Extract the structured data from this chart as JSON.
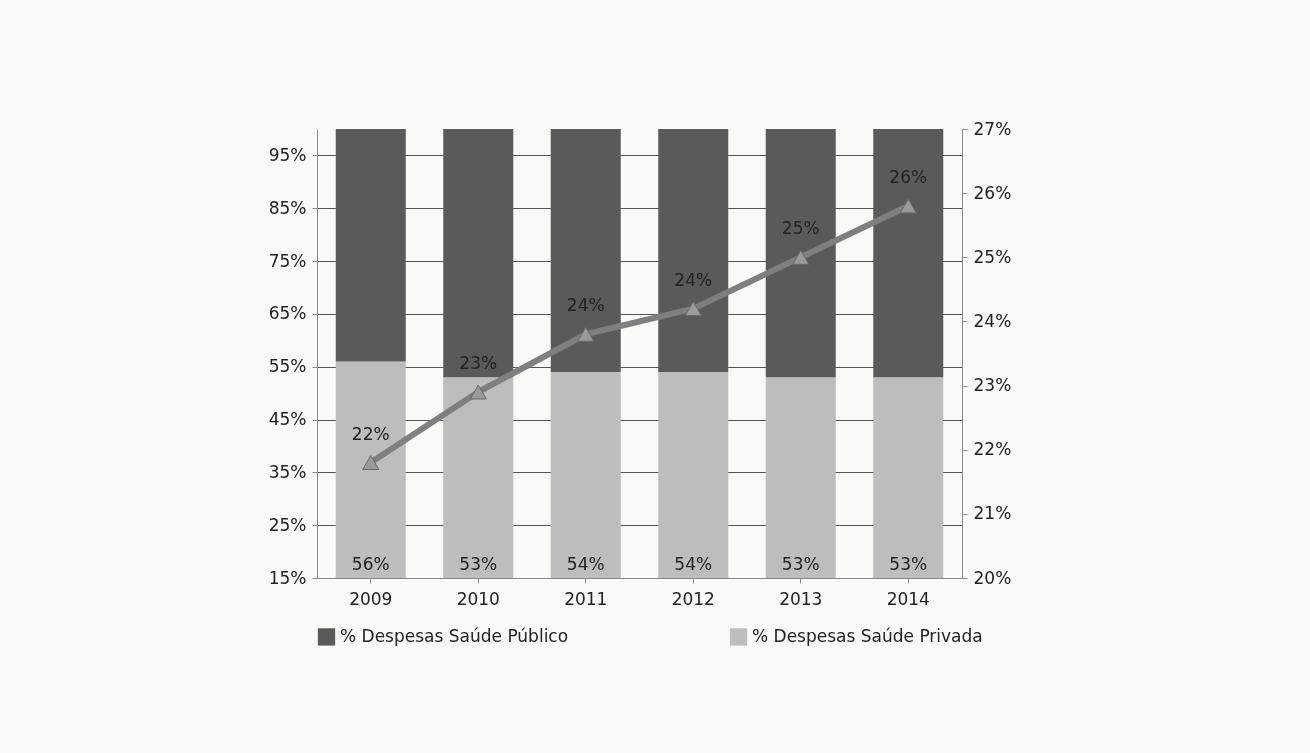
{
  "chart_data": {
    "type": "bar",
    "stacked": true,
    "categories": [
      "2009",
      "2010",
      "2011",
      "2012",
      "2013",
      "2014"
    ],
    "series": [
      {
        "name": "% Despesas Saúde Privada",
        "color": "#bdbdbd",
        "values": [
          56,
          53,
          54,
          54,
          53,
          53
        ],
        "value_labels": [
          "56%",
          "53%",
          "54%",
          "54%",
          "53%",
          "53%"
        ]
      },
      {
        "name": "% Despesas Saúde Público",
        "color": "#5a5a5a",
        "values": [
          44,
          47,
          46,
          46,
          47,
          47
        ]
      },
      {
        "type": "line",
        "axis": "y2",
        "color": "#7f7f7f",
        "values": [
          21.8,
          22.9,
          23.8,
          24.2,
          25.0,
          25.8
        ],
        "value_labels": [
          "22%",
          "23%",
          "24%",
          "24%",
          "25%",
          "26%"
        ]
      }
    ],
    "ylim": [
      15,
      100
    ],
    "yticks": [
      {
        "value": 15,
        "label": "15%"
      },
      {
        "value": 25,
        "label": "25%"
      },
      {
        "value": 35,
        "label": "35%"
      },
      {
        "value": 45,
        "label": "45%"
      },
      {
        "value": 55,
        "label": "55%"
      },
      {
        "value": 65,
        "label": "65%"
      },
      {
        "value": 75,
        "label": "75%"
      },
      {
        "value": 85,
        "label": "85%"
      },
      {
        "value": 95,
        "label": "95%"
      }
    ],
    "y2lim": [
      20,
      27
    ],
    "y2ticks": [
      {
        "value": 20,
        "label": "20%"
      },
      {
        "value": 21,
        "label": "21%"
      },
      {
        "value": 22,
        "label": "22%"
      },
      {
        "value": 23,
        "label": "23%"
      },
      {
        "value": 24,
        "label": "24%"
      },
      {
        "value": 25,
        "label": "25%"
      },
      {
        "value": 26,
        "label": "26%"
      },
      {
        "value": 27,
        "label": "27%"
      }
    ],
    "grid": "y",
    "legend": "bottom",
    "marker": "triangle",
    "line_style": "solid"
  }
}
